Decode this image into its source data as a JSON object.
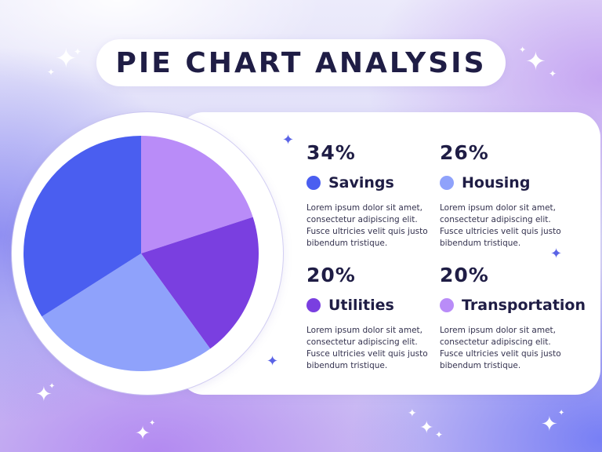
{
  "title": "PIE CHART ANALYSIS",
  "chart_data": {
    "type": "pie",
    "categories": [
      "Savings",
      "Housing",
      "Utilities",
      "Transportation"
    ],
    "values": [
      34,
      26,
      20,
      20
    ],
    "value_labels": [
      "34%",
      "26%",
      "20%",
      "20%"
    ],
    "colors": [
      "#4a5ef0",
      "#8fa2fb",
      "#7a3fe0",
      "#b98cf8"
    ],
    "start_angle_deg": 0,
    "draw_order": [
      3,
      2,
      1,
      0
    ]
  },
  "stats": [
    {
      "pct": "34%",
      "label": "Savings",
      "color": "#4a5ef0",
      "desc": "Lorem ipsum dolor sit amet, consectetur adipiscing elit. Fusce ultricies velit quis justo bibendum tristique."
    },
    {
      "pct": "26%",
      "label": "Housing",
      "color": "#8fa2fb",
      "desc": "Lorem ipsum dolor sit amet, consectetur adipiscing elit. Fusce ultricies velit quis justo bibendum tristique."
    },
    {
      "pct": "20%",
      "label": "Utilities",
      "color": "#7a3fe0",
      "desc": "Lorem ipsum dolor sit amet, consectetur adipiscing elit. Fusce ultricies velit quis justo bibendum tristique."
    },
    {
      "pct": "20%",
      "label": "Transportation",
      "color": "#b98cf8",
      "desc": "Lorem ipsum dolor sit amet, consectetur adipiscing elit. Fusce ultricies velit quis justo bibendum tristique."
    }
  ]
}
